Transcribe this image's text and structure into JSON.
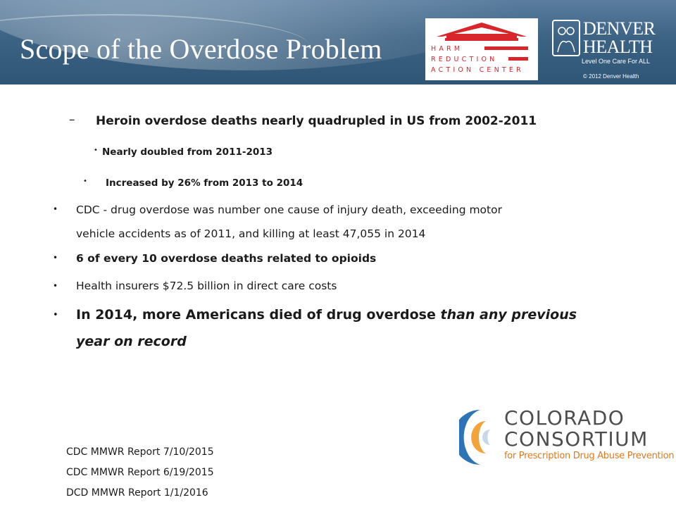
{
  "header": {
    "title": "Scope of the Overdose Problem",
    "hrac_logo_lines": [
      "HARM",
      "REDUCTION",
      "ACTION CENTER"
    ],
    "dh_logo_word1": "DENVER",
    "dh_logo_word2": "HEALTH",
    "dh_tagline": "Level One Care For ALL",
    "dh_copyright": "© 2012 Denver Health"
  },
  "bullets": {
    "dash": "–",
    "dot": "•",
    "item1": "Heroin overdose deaths nearly quadrupled in US from 2002-2011",
    "sub1": "Nearly doubled from 2011-2013",
    "sub2": "Increased by 26% from 2013 to 2014",
    "item2_line1": "CDC - drug overdose was number one cause of injury death, exceeding motor",
    "item2_line2": "vehicle accidents as of 2011, and killing at least 47,055 in 2014",
    "item3": "6 of every 10 overdose deaths related to opioids",
    "item4": "Health insurers $72.5 billion in direct care costs",
    "item5_normal": "In 2014, more Americans died of drug overdose ",
    "item5_italic1": "than any previous",
    "item5_italic2": "year on record"
  },
  "sources": [
    "CDC MMWR Report 7/10/2015",
    "CDC MMWR Report 6/19/2015",
    "DCD MMWR Report 1/1/2016"
  ],
  "colorado_logo": {
    "word1": "COLORADO",
    "word2": "CONSORTIUM",
    "tagline": "for Prescription Drug Abuse Prevention"
  },
  "colors": {
    "banner": "#3c6284",
    "hrac_red": "#d9262b",
    "cc_orange": "#e07a1e",
    "cc_blue": "#2c73b8"
  }
}
